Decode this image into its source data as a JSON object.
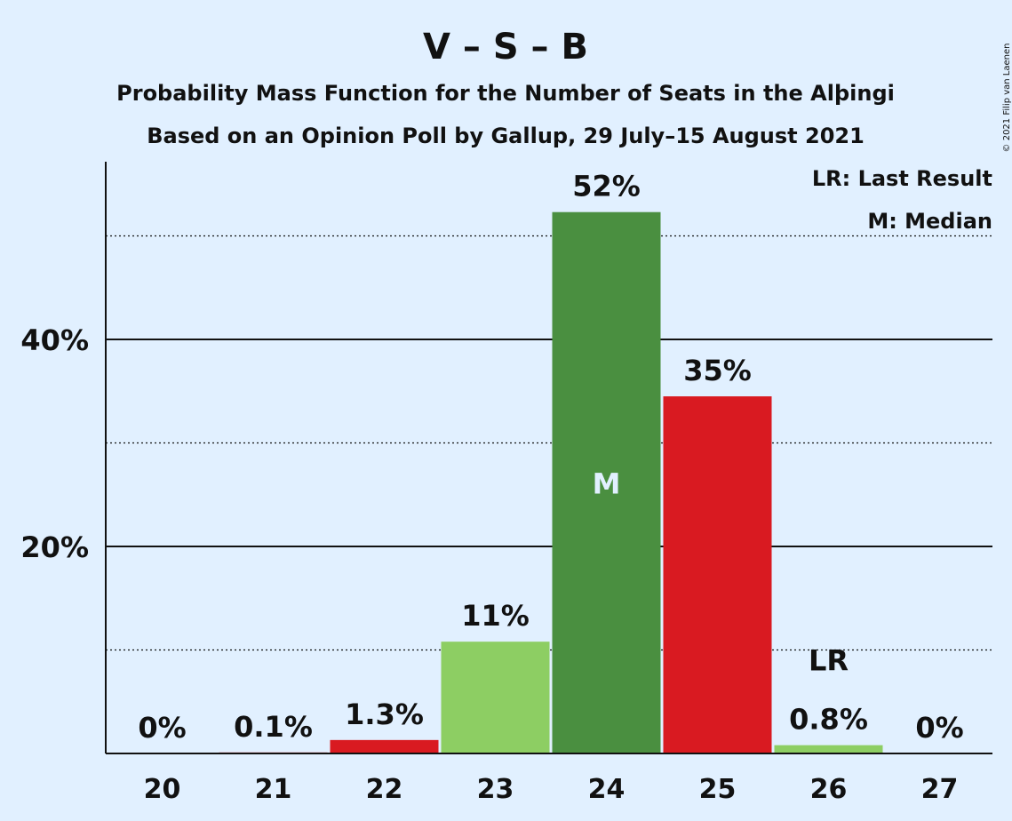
{
  "chart_data": {
    "type": "bar",
    "title": "V – S – B",
    "subtitle_lines": [
      "Probability Mass Function for the Number of Seats in the Alþingi",
      "Based on an Opinion Poll by Gallup, 29 July–15 August 2021"
    ],
    "copyright": "© 2021 Filip van Laenen",
    "legend": [
      "LR: Last Result",
      "M: Median"
    ],
    "legend_placement": "top-right",
    "categories": [
      "20",
      "21",
      "22",
      "23",
      "24",
      "25",
      "26",
      "27"
    ],
    "values": [
      0,
      0.1,
      1.3,
      10.8,
      52.3,
      34.5,
      0.8,
      0
    ],
    "data_labels": [
      "0%",
      "0.1%",
      "1.3%",
      "11%",
      "52%",
      "35%",
      "0.8%",
      "0%"
    ],
    "bar_colors": [
      "#d91a21",
      "#d91a21",
      "#d91a21",
      "#8dce63",
      "#4a8f40",
      "#d91a21",
      "#8dce63",
      "#8dce63"
    ],
    "ylim": [
      0,
      57
    ],
    "yticks": [
      {
        "value": 20,
        "label": "20%"
      },
      {
        "value": 40,
        "label": "40%"
      }
    ],
    "grid_major": [
      20,
      40
    ],
    "grid_minor": [
      10,
      30,
      50
    ],
    "markers": {
      "median": {
        "category": "24",
        "label": "M"
      },
      "last_result": {
        "category": "26",
        "label": "LR"
      }
    },
    "xlabel": "",
    "ylabel": ""
  }
}
